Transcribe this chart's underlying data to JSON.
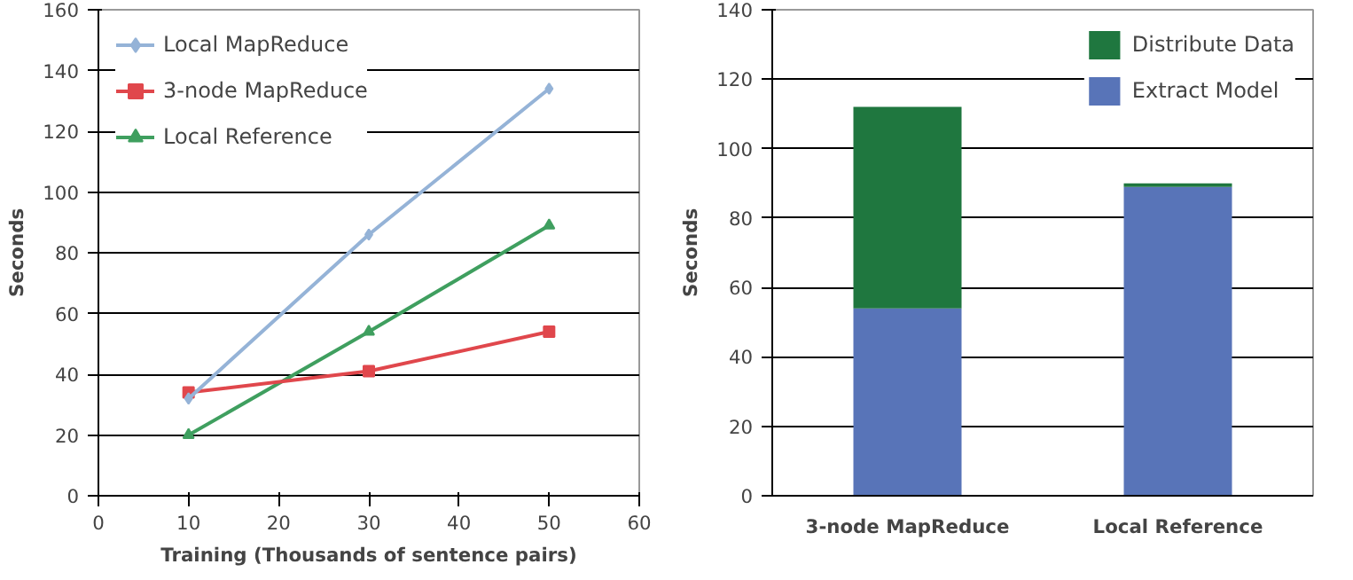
{
  "chart_data": [
    {
      "type": "line",
      "xlabel": "Training (Thousands of sentence pairs)",
      "ylabel": "Seconds",
      "x": [
        10,
        30,
        50
      ],
      "series": [
        {
          "name": "Local MapReduce",
          "color": "#95b3d7",
          "values": [
            32,
            86,
            134
          ],
          "marker": "diamond"
        },
        {
          "name": "3-node MapReduce",
          "color": "#e0474c",
          "values": [
            34,
            41,
            54
          ],
          "marker": "square"
        },
        {
          "name": "Local Reference",
          "color": "#3f9f5f",
          "values": [
            20,
            54,
            89
          ],
          "marker": "triangle"
        }
      ],
      "xlim": [
        0,
        60
      ],
      "xticks": [
        0,
        10,
        20,
        30,
        40,
        50,
        60
      ],
      "ylim": [
        0,
        160
      ],
      "yticks": [
        0,
        20,
        40,
        60,
        80,
        100,
        120,
        140,
        160
      ],
      "grid": "y",
      "legend": "top left",
      "line_style": "solid"
    },
    {
      "type": "bar",
      "stacked": true,
      "ylabel": "Seconds",
      "categories": [
        "3-node MapReduce",
        "Local Reference"
      ],
      "series": [
        {
          "name": "Extract Model",
          "color": "#5874b8",
          "values": [
            54,
            89
          ]
        },
        {
          "name": "Distribute Data",
          "color": "#1f773f",
          "values": [
            58,
            1
          ]
        }
      ],
      "ylim": [
        0,
        140
      ],
      "yticks": [
        0,
        20,
        40,
        60,
        80,
        100,
        120,
        140
      ],
      "grid": "y",
      "legend": "top right"
    }
  ]
}
